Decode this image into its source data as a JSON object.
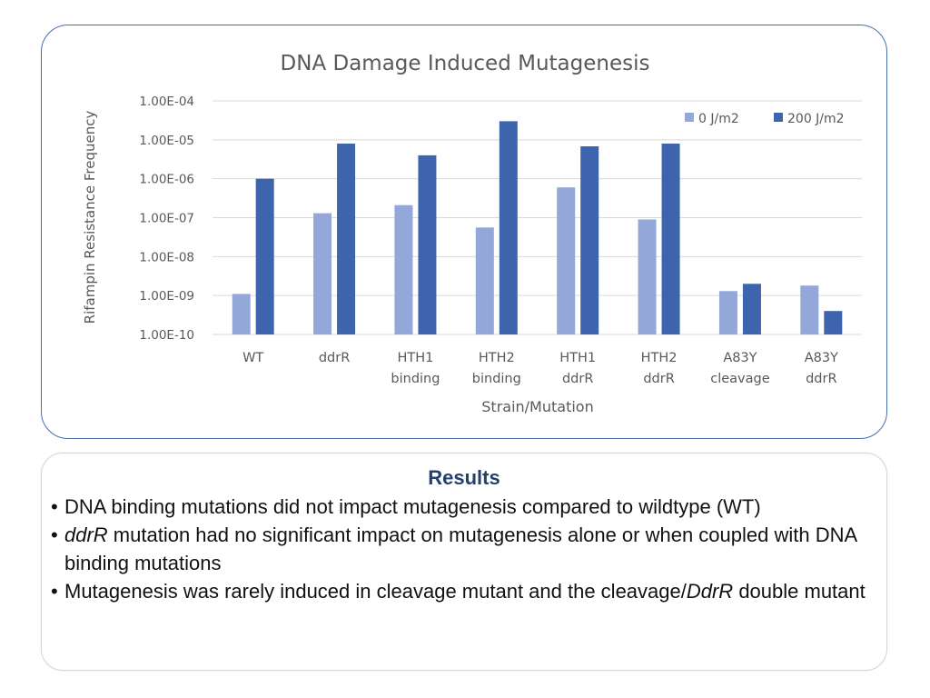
{
  "colors": {
    "series_0": "#93a7d8",
    "series_200": "#3e64ae",
    "frame": "#4a6fb0",
    "results_title": "#24406e"
  },
  "chart_data": {
    "type": "bar",
    "title": "DNA Damage Induced Mutagenesis",
    "xlabel": "Strain/Mutation",
    "ylabel": "Rifampin Resistance Frequency",
    "yscale": "log",
    "ylim": [
      1e-10,
      0.0001
    ],
    "yticks": [
      "1.00E-10",
      "1.00E-09",
      "1.00E-08",
      "1.00E-07",
      "1.00E-06",
      "1.00E-05",
      "1.00E-04"
    ],
    "grid": true,
    "legend_position": "top-right",
    "categories": [
      [
        "WT"
      ],
      [
        "ddrR"
      ],
      [
        "HTH1",
        "binding"
      ],
      [
        "HTH2",
        "binding"
      ],
      [
        "HTH1",
        "ddrR"
      ],
      [
        "HTH2",
        "ddrR"
      ],
      [
        "A83Y",
        "cleavage"
      ],
      [
        "A83Y",
        "ddrR"
      ]
    ],
    "series": [
      {
        "name": "0 J/m2",
        "color": "#93a7d8",
        "values": [
          1.1e-09,
          1.3e-07,
          2.1e-07,
          5.6e-08,
          6e-07,
          9e-08,
          1.3e-09,
          1.8e-09
        ]
      },
      {
        "name": "200 J/m2",
        "color": "#3e64ae",
        "values": [
          1e-06,
          8e-06,
          4e-06,
          3e-05,
          6.8e-06,
          8e-06,
          2e-09,
          4e-10
        ]
      }
    ]
  },
  "results": {
    "title": "Results",
    "bullets": [
      {
        "bullet": "•",
        "text": "DNA binding mutations did not impact mutagenesis compared to wildtype (WT)"
      },
      {
        "bullet": "•",
        "italic": "ddrR",
        "text": " mutation had no significant impact on mutagenesis alone or when coupled with DNA binding mutations"
      },
      {
        "bullet": "•",
        "text": "Mutagenesis was rarely induced in cleavage mutant and the cleavage/",
        "italic": "DdrR",
        "text_end": " double mutant"
      }
    ]
  }
}
